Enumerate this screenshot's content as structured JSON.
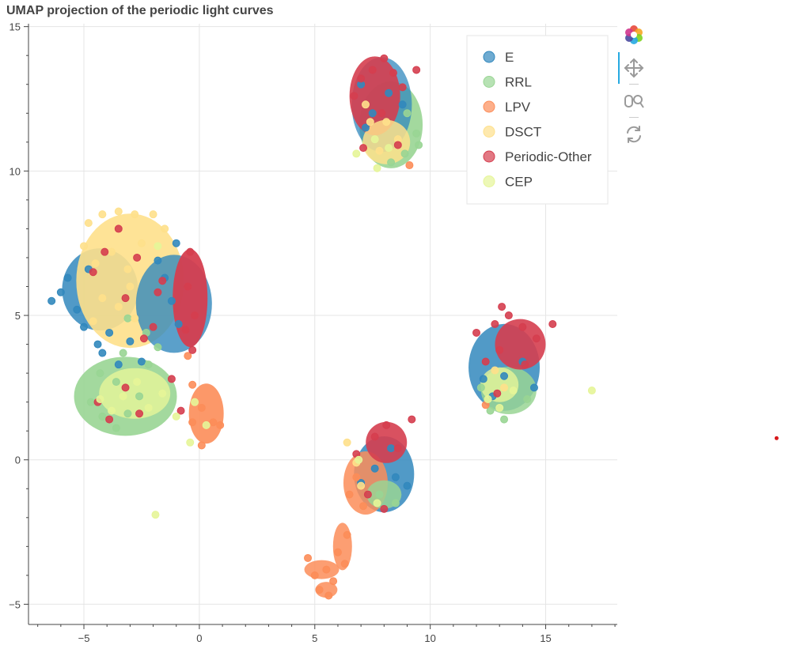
{
  "chart_data": {
    "type": "scatter",
    "title": "UMAP projection of the periodic light curves",
    "xlabel": "",
    "ylabel": "",
    "xlim": [
      -7.4,
      18.1
    ],
    "ylim": [
      -5.7,
      15.1
    ],
    "x_ticks": [
      -5,
      0,
      5,
      10,
      15
    ],
    "y_ticks": [
      -5,
      0,
      5,
      10,
      15
    ],
    "x_tick_labels": [
      "−5",
      "0",
      "5",
      "10",
      "15"
    ],
    "y_tick_labels": [
      "−5",
      "0",
      "5",
      "10",
      "15"
    ],
    "grid": true,
    "legend_position": "top-right",
    "series": [
      {
        "name": "E",
        "color": "#3288bd",
        "points": [
          [
            -6.4,
            5.5
          ],
          [
            -6.0,
            5.8
          ],
          [
            -5.7,
            6.3
          ],
          [
            -5.3,
            5.2
          ],
          [
            -5.0,
            4.6
          ],
          [
            -4.8,
            6.6
          ],
          [
            -4.4,
            4.0
          ],
          [
            -4.2,
            3.7
          ],
          [
            -3.9,
            4.4
          ],
          [
            -3.5,
            3.3
          ],
          [
            -3.0,
            4.1
          ],
          [
            -2.5,
            3.4
          ],
          [
            -1.8,
            6.9
          ],
          [
            -1.5,
            6.3
          ],
          [
            -1.2,
            5.5
          ],
          [
            -0.9,
            4.7
          ],
          [
            -1.0,
            7.5
          ],
          [
            7.0,
            13.0
          ],
          [
            7.5,
            12.0
          ],
          [
            8.2,
            12.7
          ],
          [
            8.8,
            12.3
          ],
          [
            7.2,
            11.5
          ],
          [
            7.6,
            -0.3
          ],
          [
            8.5,
            -0.6
          ],
          [
            9.0,
            -0.9
          ],
          [
            8.3,
            0.4
          ],
          [
            7.0,
            -0.8
          ],
          [
            12.3,
            2.8
          ],
          [
            12.7,
            2.2
          ],
          [
            14.5,
            2.5
          ],
          [
            13.2,
            2.9
          ],
          [
            14.0,
            3.4
          ]
        ]
      },
      {
        "name": "RRL",
        "color": "#99d594",
        "points": [
          [
            -4.7,
            2.0
          ],
          [
            -4.2,
            1.5
          ],
          [
            -3.6,
            1.1
          ],
          [
            -3.1,
            1.6
          ],
          [
            -2.6,
            2.2
          ],
          [
            -2.2,
            3.3
          ],
          [
            -3.6,
            2.7
          ],
          [
            -4.3,
            3.0
          ],
          [
            -3.3,
            3.7
          ],
          [
            -1.8,
            3.9
          ],
          [
            -3.1,
            4.9
          ],
          [
            -2.3,
            4.4
          ],
          [
            9.0,
            12.0
          ],
          [
            9.4,
            11.3
          ],
          [
            8.9,
            10.6
          ],
          [
            8.3,
            10.3
          ],
          [
            9.5,
            10.9
          ],
          [
            7.8,
            -1.2
          ],
          [
            8.5,
            -1.5
          ],
          [
            12.6,
            1.7
          ],
          [
            13.2,
            1.4
          ],
          [
            14.2,
            2.1
          ],
          [
            12.2,
            2.5
          ]
        ]
      },
      {
        "name": "LPV",
        "color": "#fc8d59",
        "points": [
          [
            -0.5,
            3.6
          ],
          [
            -0.3,
            2.6
          ],
          [
            0.1,
            1.8
          ],
          [
            0.6,
            1.3
          ],
          [
            0.9,
            1.2
          ],
          [
            0.1,
            0.5
          ],
          [
            -0.3,
            1.3
          ],
          [
            6.8,
            -0.6
          ],
          [
            6.5,
            -1.2
          ],
          [
            7.1,
            -1.6
          ],
          [
            6.4,
            -2.6
          ],
          [
            6.0,
            -3.2
          ],
          [
            5.5,
            -3.8
          ],
          [
            5.0,
            -4.0
          ],
          [
            5.8,
            -4.2
          ],
          [
            5.2,
            -4.5
          ],
          [
            4.7,
            -3.4
          ],
          [
            5.6,
            -4.7
          ],
          [
            6.3,
            -3.6
          ],
          [
            9.1,
            10.2
          ],
          [
            12.4,
            1.9
          ]
        ]
      },
      {
        "name": "DSCT",
        "color": "#fee08b",
        "points": [
          [
            -4.8,
            8.2
          ],
          [
            -4.2,
            8.5
          ],
          [
            -3.5,
            8.6
          ],
          [
            -2.8,
            8.5
          ],
          [
            -2.0,
            8.5
          ],
          [
            -1.5,
            8.0
          ],
          [
            -5.0,
            7.4
          ],
          [
            -4.5,
            6.8
          ],
          [
            -3.8,
            7.2
          ],
          [
            -3.1,
            6.6
          ],
          [
            -2.5,
            7.5
          ],
          [
            -4.2,
            5.6
          ],
          [
            -3.5,
            5.3
          ],
          [
            -2.8,
            4.9
          ],
          [
            -3.0,
            6.0
          ],
          [
            -4.6,
            4.8
          ],
          [
            7.4,
            11.7
          ],
          [
            7.8,
            10.7
          ],
          [
            8.6,
            11.1
          ],
          [
            7.2,
            12.3
          ],
          [
            8.1,
            11.7
          ],
          [
            6.8,
            -0.1
          ],
          [
            7.0,
            -0.9
          ],
          [
            6.4,
            0.6
          ],
          [
            13.2,
            2.5
          ],
          [
            12.8,
            3.1
          ]
        ]
      },
      {
        "name": "Periodic-Other",
        "color": "#d53e4f",
        "points": [
          [
            -4.1,
            7.2
          ],
          [
            -3.5,
            8.0
          ],
          [
            -2.7,
            7.0
          ],
          [
            -1.6,
            6.2
          ],
          [
            -4.6,
            6.5
          ],
          [
            -3.2,
            5.6
          ],
          [
            -2.4,
            4.2
          ],
          [
            -1.8,
            5.8
          ],
          [
            -0.4,
            7.2
          ],
          [
            -0.5,
            6.0
          ],
          [
            -0.2,
            5.0
          ],
          [
            -0.6,
            4.5
          ],
          [
            -0.3,
            3.8
          ],
          [
            -4.4,
            2.0
          ],
          [
            -3.9,
            1.4
          ],
          [
            -2.6,
            1.6
          ],
          [
            -3.2,
            2.5
          ],
          [
            -0.8,
            1.7
          ],
          [
            -1.2,
            2.8
          ],
          [
            -2.0,
            4.6
          ],
          [
            7.0,
            13.2
          ],
          [
            7.5,
            13.5
          ],
          [
            8.0,
            13.9
          ],
          [
            8.4,
            13.4
          ],
          [
            6.7,
            12.6
          ],
          [
            7.9,
            12.0
          ],
          [
            8.8,
            12.9
          ],
          [
            7.1,
            10.8
          ],
          [
            8.6,
            10.9
          ],
          [
            9.4,
            13.5
          ],
          [
            7.6,
            0.8
          ],
          [
            8.1,
            1.2
          ],
          [
            8.6,
            0.4
          ],
          [
            6.8,
            0.2
          ],
          [
            7.3,
            -1.2
          ],
          [
            8.0,
            -1.7
          ],
          [
            9.2,
            1.4
          ],
          [
            12.0,
            4.4
          ],
          [
            12.8,
            4.7
          ],
          [
            13.4,
            5.0
          ],
          [
            14.0,
            4.6
          ],
          [
            14.6,
            4.2
          ],
          [
            14.1,
            3.3
          ],
          [
            13.0,
            3.8
          ],
          [
            12.4,
            3.4
          ],
          [
            15.3,
            4.7
          ],
          [
            13.1,
            5.3
          ],
          [
            12.9,
            2.3
          ]
        ]
      },
      {
        "name": "CEP",
        "color": "#e6f598",
        "points": [
          [
            -4.3,
            2.1
          ],
          [
            -3.8,
            1.7
          ],
          [
            -3.3,
            2.2
          ],
          [
            -2.7,
            2.7
          ],
          [
            -2.2,
            1.8
          ],
          [
            -1.6,
            2.3
          ],
          [
            -1.0,
            1.5
          ],
          [
            -0.2,
            2.0
          ],
          [
            0.3,
            1.2
          ],
          [
            -0.4,
            0.6
          ],
          [
            -1.8,
            7.4
          ],
          [
            7.6,
            11.1
          ],
          [
            8.2,
            10.8
          ],
          [
            7.7,
            10.1
          ],
          [
            6.8,
            10.6
          ],
          [
            7.7,
            -1.5
          ],
          [
            6.9,
            0.0
          ],
          [
            12.5,
            2.1
          ],
          [
            13.0,
            1.8
          ],
          [
            13.6,
            2.4
          ],
          [
            17.0,
            2.4
          ],
          [
            -1.9,
            -1.9
          ]
        ]
      }
    ],
    "outlier": {
      "x": 25.0,
      "y": 0.75,
      "color": "#d7191c"
    }
  },
  "legend_items": [
    {
      "name": "E",
      "color": "#3288bd"
    },
    {
      "name": "RRL",
      "color": "#99d594"
    },
    {
      "name": "LPV",
      "color": "#fc8d59"
    },
    {
      "name": "DSCT",
      "color": "#fee08b"
    },
    {
      "name": "Periodic-Other",
      "color": "#d53e4f"
    },
    {
      "name": "CEP",
      "color": "#e6f598"
    }
  ],
  "toolbar": {
    "tools": [
      "bokeh-logo-icon",
      "pan-icon",
      "box-zoom-icon",
      "reset-icon"
    ],
    "active_color": "#26aae1"
  }
}
